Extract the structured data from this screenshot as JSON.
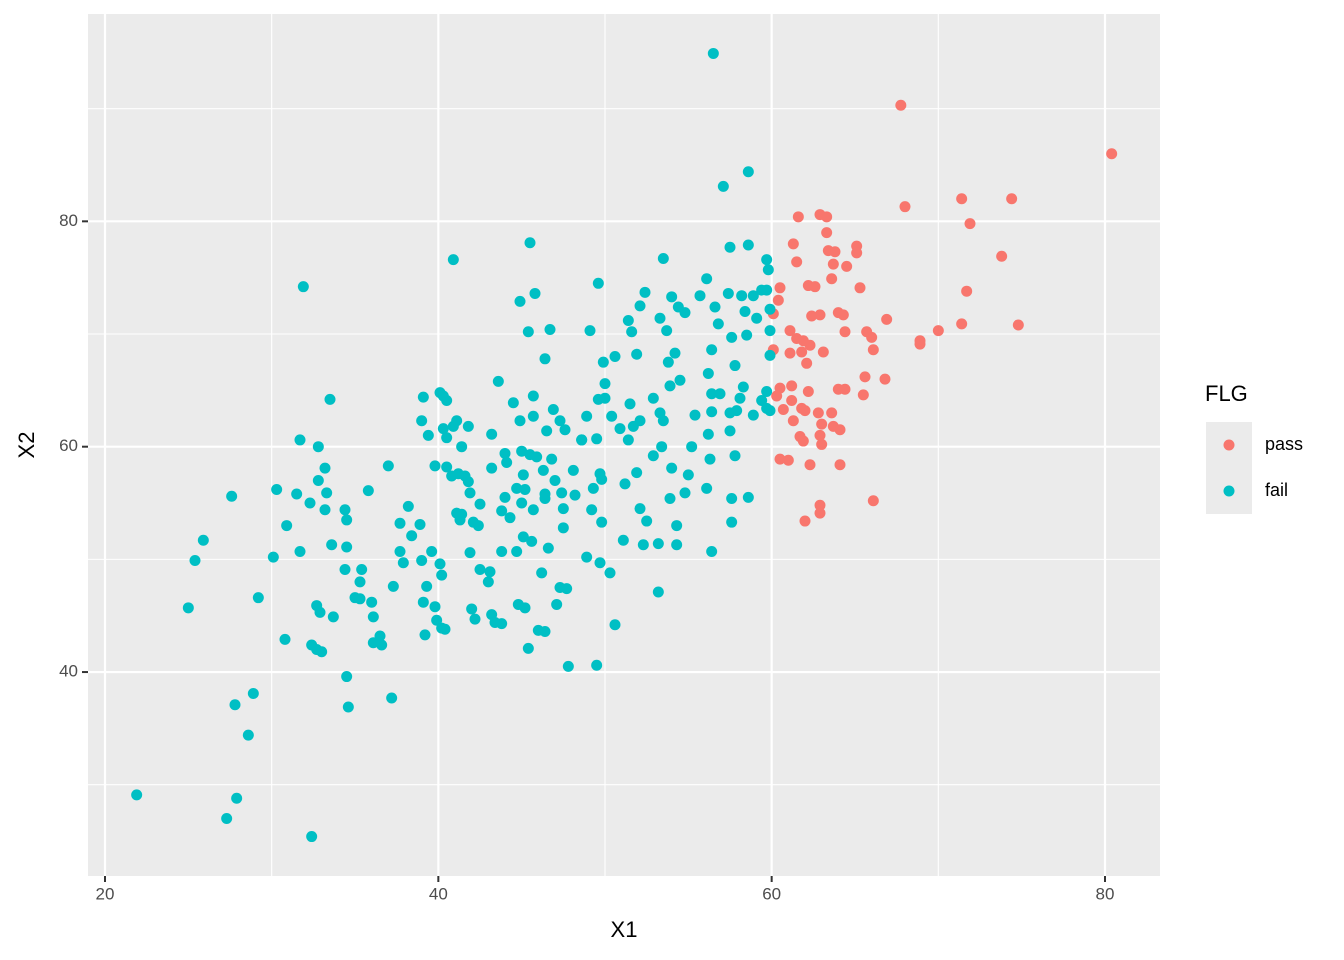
{
  "chart_data": {
    "type": "scatter",
    "x_label": "X1",
    "y_label": "X2",
    "legend_title": "FLG",
    "legend_position": "right",
    "grid": true,
    "xlim": [
      18.98,
      83.3
    ],
    "ylim": [
      21.9,
      98.4
    ],
    "xticks": [
      20,
      40,
      60,
      80
    ],
    "yticks": [
      40,
      60,
      80
    ],
    "series": [
      {
        "name": "pass",
        "color": "#F8766D",
        "x": [
          67.75,
          80.4,
          68.0,
          71.4,
          74.4,
          71.9,
          61.6,
          62.9,
          63.3,
          63.3,
          61.3,
          63.4,
          63.8,
          65.1,
          65.1,
          61.5,
          63.7,
          64.5,
          73.8,
          63.6,
          60.5,
          62.2,
          62.6,
          65.3,
          71.7,
          60.4,
          60.1,
          62.4,
          62.9,
          64.0,
          64.3,
          66.9,
          71.4,
          74.8,
          61.1,
          64.4,
          65.7,
          70.0,
          61.5,
          61.9,
          62.3,
          66.0,
          68.9,
          68.9,
          60.1,
          61.1,
          61.8,
          63.1,
          66.1,
          62.1,
          65.6,
          66.8,
          61.2,
          62.2,
          64.0,
          64.4,
          60.5,
          60.3,
          65.5,
          61.2,
          61.8,
          60.7,
          62.0,
          62.8,
          63.6,
          61.3,
          63.0,
          63.7,
          64.1,
          61.7,
          62.9,
          61.9,
          63.0,
          60.5,
          61.0,
          62.3,
          64.1,
          66.1,
          62.9,
          62.9,
          62.0
        ],
        "y": [
          90.3,
          86.0,
          81.3,
          82.0,
          82.0,
          79.8,
          80.4,
          80.6,
          80.4,
          79.0,
          78.0,
          77.4,
          77.3,
          77.8,
          77.2,
          76.4,
          76.2,
          76.0,
          76.9,
          74.9,
          74.1,
          74.3,
          74.2,
          74.1,
          73.8,
          73.0,
          71.8,
          71.6,
          71.7,
          71.9,
          71.7,
          71.3,
          70.9,
          70.8,
          70.3,
          70.2,
          70.2,
          70.3,
          69.6,
          69.4,
          69.0,
          69.7,
          69.4,
          69.1,
          68.6,
          68.3,
          68.4,
          68.4,
          68.6,
          67.4,
          66.2,
          66.0,
          65.4,
          64.9,
          65.1,
          65.1,
          65.2,
          64.5,
          64.6,
          64.1,
          63.4,
          63.3,
          63.2,
          63.0,
          63.0,
          62.3,
          62.0,
          61.8,
          61.5,
          60.9,
          61.0,
          60.5,
          60.2,
          58.9,
          58.8,
          58.4,
          58.4,
          55.2,
          54.8,
          54.1,
          53.4
        ]
      },
      {
        "name": "fail",
        "color": "#00BFC4",
        "x": [
          56.5,
          57.1,
          58.6,
          40.9,
          45.5,
          31.9,
          33.5,
          31.7,
          32.8,
          27.6,
          25.9,
          25.4,
          25.0,
          21.9,
          27.3,
          27.9,
          32.4,
          27.8,
          28.6,
          28.9,
          29.2,
          30.3,
          30.1,
          30.8,
          30.9,
          31.5,
          31.7,
          32.4,
          32.7,
          33.0,
          32.7,
          32.9,
          33.7,
          33.3,
          33.2,
          33.2,
          33.6,
          32.3,
          32.8,
          34.4,
          34.5,
          34.5,
          34.4,
          34.5,
          34.6,
          35.0,
          35.3,
          35.4,
          35.3,
          35.8,
          36.0,
          36.1,
          36.1,
          36.6,
          36.5,
          37.2,
          37.0,
          37.3,
          37.7,
          37.7,
          37.9,
          38.2,
          38.4,
          38.9,
          39.0,
          39.1,
          39.2,
          39.3,
          39.6,
          39.8,
          39.9,
          40.1,
          40.2,
          40.2,
          40.4,
          39.0,
          39.1,
          39.4,
          39.8,
          40.1,
          40.3,
          40.5,
          40.3,
          40.5,
          40.9,
          41.1,
          41.4,
          41.8,
          40.5,
          40.8,
          41.2,
          41.6,
          41.1,
          41.3,
          41.4,
          41.9,
          41.8,
          41.9,
          42.1,
          42.4,
          42.5,
          42.0,
          42.2,
          43.1,
          43.0,
          43.2,
          43.4,
          43.8,
          43.2,
          43.6,
          43.2,
          44.0,
          44.1,
          44.5,
          43.8,
          44.0,
          44.7,
          43.8,
          44.7,
          44.9,
          45.4,
          45.8,
          44.9,
          45.7,
          45.7,
          46.4,
          46.7,
          45.0,
          45.5,
          45.9,
          46.5,
          46.9,
          45.1,
          45.2,
          46.3,
          46.4,
          46.8,
          45.1,
          45.6,
          46.6,
          45.2,
          44.8,
          45.4,
          46.0,
          46.4,
          46.2,
          47.1,
          47.3,
          47.7,
          47.8,
          47.3,
          47.6,
          48.1,
          47.4,
          47.5,
          47.5,
          48.2,
          48.6,
          48.9,
          49.1,
          49.6,
          49.6,
          50.0,
          49.9,
          50.0,
          49.5,
          49.7,
          49.8,
          49.3,
          49.2,
          49.8,
          48.9,
          49.7,
          50.3,
          49.5,
          50.6,
          50.4,
          50.6,
          51.2,
          51.1,
          51.4,
          52.1,
          52.4,
          51.6,
          51.9,
          51.5,
          51.7,
          51.4,
          51.9,
          52.1,
          52.5,
          52.3,
          53.2,
          53.2,
          53.5,
          53.3,
          53.7,
          54.0,
          53.8,
          54.4,
          54.8,
          54.2,
          53.9,
          53.3,
          53.4,
          52.9,
          54.0,
          53.9,
          54.3,
          54.3,
          54.8,
          55.0,
          55.2,
          55.4,
          55.7,
          56.1,
          56.6,
          56.8,
          56.4,
          56.2,
          56.4,
          56.4,
          56.2,
          56.3,
          56.1,
          56.4,
          57.5,
          57.4,
          58.2,
          58.6,
          57.6,
          57.8,
          58.4,
          58.5,
          57.9,
          57.5,
          57.8,
          57.6,
          57.6,
          58.6,
          58.9,
          59.1,
          59.4,
          59.7,
          59.8,
          59.7,
          59.9,
          59.9,
          59.9,
          59.7,
          59.7,
          59.9,
          59.4,
          58.9,
          58.3,
          58.1,
          57.5,
          56.9,
          54.5,
          52.9,
          53.5,
          52.1,
          50.9,
          48.6,
          47.0,
          46.4,
          45.7,
          45.0,
          44.3,
          42.5
        ],
        "y": [
          94.9,
          83.1,
          84.4,
          76.6,
          78.1,
          74.2,
          64.2,
          60.6,
          60.0,
          55.6,
          51.7,
          49.9,
          45.7,
          29.1,
          27.0,
          28.8,
          25.4,
          37.1,
          34.4,
          38.1,
          46.6,
          56.2,
          50.2,
          42.9,
          53.0,
          55.8,
          50.7,
          42.4,
          42.0,
          41.8,
          45.9,
          45.3,
          44.9,
          55.9,
          58.1,
          54.4,
          51.3,
          55.0,
          57.0,
          54.4,
          53.5,
          51.1,
          49.1,
          39.6,
          36.9,
          46.6,
          46.5,
          49.1,
          48.0,
          56.1,
          46.2,
          44.9,
          42.6,
          42.4,
          43.2,
          37.7,
          58.3,
          47.6,
          53.2,
          50.7,
          49.7,
          54.7,
          52.1,
          53.1,
          49.9,
          46.2,
          43.3,
          47.6,
          50.7,
          45.8,
          44.6,
          49.6,
          48.6,
          43.9,
          43.8,
          62.3,
          64.4,
          61.0,
          58.3,
          64.8,
          64.5,
          64.1,
          61.6,
          60.8,
          61.8,
          62.3,
          60.0,
          61.8,
          58.2,
          57.4,
          57.6,
          57.4,
          54.1,
          53.5,
          54.0,
          55.9,
          56.9,
          50.6,
          53.3,
          53.0,
          49.1,
          45.6,
          44.7,
          48.9,
          48.0,
          45.1,
          44.4,
          44.3,
          61.1,
          65.8,
          58.1,
          59.4,
          58.6,
          63.9,
          54.3,
          55.5,
          56.3,
          50.7,
          50.7,
          72.9,
          70.2,
          73.6,
          62.3,
          62.7,
          64.5,
          67.8,
          70.4,
          59.6,
          59.3,
          59.1,
          61.4,
          63.3,
          57.5,
          56.2,
          57.9,
          55.8,
          58.9,
          52.0,
          51.6,
          51.0,
          45.7,
          46.0,
          42.1,
          43.7,
          43.6,
          48.8,
          46.0,
          47.5,
          47.4,
          40.5,
          62.3,
          61.5,
          57.9,
          55.9,
          54.5,
          52.8,
          55.7,
          60.6,
          62.7,
          70.3,
          74.5,
          64.2,
          64.3,
          67.5,
          65.6,
          60.7,
          57.6,
          57.1,
          56.3,
          54.4,
          53.3,
          50.2,
          49.7,
          48.8,
          40.6,
          44.2,
          62.7,
          68.0,
          56.7,
          51.7,
          71.2,
          72.5,
          73.7,
          70.2,
          68.2,
          63.8,
          61.8,
          60.6,
          57.7,
          54.5,
          53.4,
          51.3,
          47.1,
          51.4,
          76.7,
          71.4,
          70.3,
          73.3,
          67.5,
          72.4,
          71.9,
          68.3,
          65.4,
          63.0,
          60.0,
          59.2,
          58.1,
          55.4,
          53.0,
          51.3,
          55.9,
          57.5,
          60.0,
          62.8,
          73.4,
          74.9,
          72.4,
          70.9,
          68.6,
          66.5,
          64.7,
          63.1,
          61.1,
          58.9,
          56.3,
          50.7,
          77.7,
          73.6,
          73.4,
          77.9,
          69.7,
          67.2,
          72.0,
          69.9,
          63.2,
          61.4,
          59.2,
          55.4,
          53.3,
          55.5,
          73.4,
          71.4,
          73.9,
          76.6,
          75.7,
          73.9,
          72.2,
          70.3,
          68.1,
          64.9,
          63.4,
          63.2,
          64.1,
          62.8,
          65.3,
          64.3,
          63.0,
          64.7,
          65.9,
          64.3,
          62.3,
          62.3,
          61.6,
          60.6,
          57.0,
          55.4,
          54.4,
          55.0,
          53.7,
          54.9
        ]
      }
    ]
  }
}
